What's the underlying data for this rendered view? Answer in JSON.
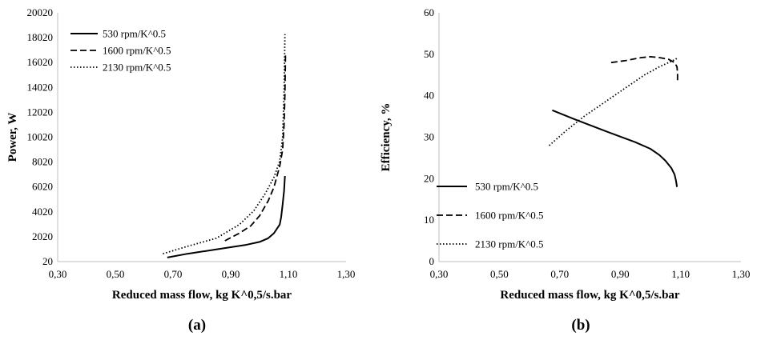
{
  "chart_data": [
    {
      "type": "line",
      "xlabel": "Reduced mass flow, kg K^0,5/s.bar",
      "ylabel": "Power, W",
      "panel_label": "(a)",
      "xlim": [
        0.3,
        1.3
      ],
      "ylim": [
        20,
        20020
      ],
      "x_ticks": [
        "0,30",
        "0,50",
        "0,70",
        "0,90",
        "1,10",
        "1,30"
      ],
      "y_ticks": [
        "20",
        "2020",
        "4020",
        "6020",
        "8020",
        "10020",
        "12020",
        "14020",
        "16020",
        "18020",
        "20020"
      ],
      "grid": false,
      "legend_position": "top-left",
      "series": [
        {
          "name": "530 rpm/K^0.5",
          "style": "solid",
          "x": [
            0.68,
            0.75,
            0.85,
            0.95,
            1.0,
            1.03,
            1.05,
            1.07,
            1.075,
            1.08,
            1.085,
            1.088
          ],
          "y": [
            350,
            650,
            1000,
            1350,
            1600,
            1900,
            2300,
            3000,
            3600,
            4600,
            5700,
            6900
          ]
        },
        {
          "name": "1600 rpm/K^0.5",
          "style": "dashed",
          "x": [
            0.88,
            0.93,
            0.97,
            1.0,
            1.03,
            1.05,
            1.07,
            1.08,
            1.085,
            1.088,
            1.09
          ],
          "y": [
            1700,
            2300,
            2900,
            3700,
            4900,
            6000,
            7700,
            9000,
            11000,
            13500,
            16700
          ]
        },
        {
          "name": "2130 rpm/K^0.5",
          "style": "dotted",
          "x": [
            0.665,
            0.75,
            0.85,
            0.93,
            0.98,
            1.02,
            1.05,
            1.07,
            1.08,
            1.085,
            1.088
          ],
          "y": [
            650,
            1250,
            1900,
            3000,
            4100,
            5500,
            6800,
            8100,
            10000,
            13500,
            18300
          ]
        }
      ]
    },
    {
      "type": "line",
      "xlabel": "Reduced mass flow, kg K^0,5/s.bar",
      "ylabel": "Efficiency, %",
      "panel_label": "(b)",
      "xlim": [
        0.3,
        1.3
      ],
      "ylim": [
        0,
        60
      ],
      "x_ticks": [
        "0,30",
        "0,50",
        "0,70",
        "0,90",
        "1,10",
        "1,30"
      ],
      "y_ticks": [
        "0",
        "10",
        "20",
        "30",
        "40",
        "50",
        "60"
      ],
      "grid": false,
      "legend_position": "bottom-left",
      "series": [
        {
          "name": "530 rpm/K^0.5",
          "style": "solid",
          "x": [
            0.675,
            0.75,
            0.85,
            0.95,
            1.0,
            1.03,
            1.05,
            1.07,
            1.08,
            1.085,
            1.088
          ],
          "y": [
            36.5,
            34.3,
            31.5,
            28.8,
            27.2,
            25.7,
            24.3,
            22.5,
            21.0,
            19.5,
            18.0
          ]
        },
        {
          "name": "1600 rpm/K^0.5",
          "style": "dashed",
          "x": [
            0.87,
            0.92,
            0.97,
            1.0,
            1.03,
            1.06,
            1.08,
            1.088,
            1.09,
            1.09
          ],
          "y": [
            48.0,
            48.5,
            49.2,
            49.4,
            49.2,
            48.8,
            48.0,
            47.0,
            45.5,
            43.5
          ]
        },
        {
          "name": "2130 rpm/K^0.5",
          "style": "dotted",
          "x": [
            0.665,
            0.72,
            0.78,
            0.85,
            0.92,
            0.98,
            1.03,
            1.07,
            1.088
          ],
          "y": [
            28.0,
            31.5,
            35.0,
            38.5,
            42.0,
            45.0,
            47.0,
            48.3,
            49.0
          ]
        }
      ]
    }
  ]
}
